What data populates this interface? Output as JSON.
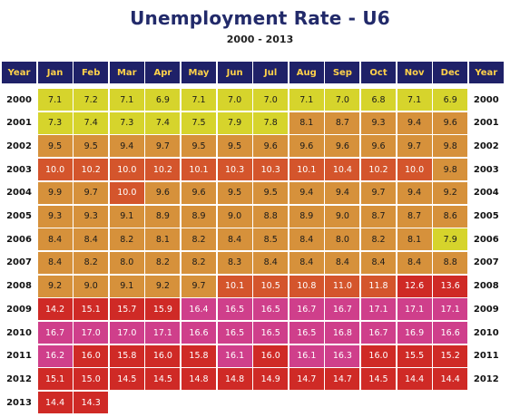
{
  "chart_data": {
    "type": "heatmap",
    "title": "Unemployment Rate - U6",
    "subtitle": "2000 - 2013",
    "row_header_label": "Year",
    "columns": [
      "Jan",
      "Feb",
      "Mar",
      "Apr",
      "May",
      "Jun",
      "Jul",
      "Aug",
      "Sep",
      "Oct",
      "Nov",
      "Dec"
    ],
    "rows": [
      {
        "year": "2000",
        "values": [
          "7.1",
          "7.2",
          "7.1",
          "6.9",
          "7.1",
          "7.0",
          "7.0",
          "7.1",
          "7.0",
          "6.8",
          "7.1",
          "6.9"
        ]
      },
      {
        "year": "2001",
        "values": [
          "7.3",
          "7.4",
          "7.3",
          "7.4",
          "7.5",
          "7.9",
          "7.8",
          "8.1",
          "8.7",
          "9.3",
          "9.4",
          "9.6"
        ]
      },
      {
        "year": "2002",
        "values": [
          "9.5",
          "9.5",
          "9.4",
          "9.7",
          "9.5",
          "9.5",
          "9.6",
          "9.6",
          "9.6",
          "9.6",
          "9.7",
          "9.8"
        ]
      },
      {
        "year": "2003",
        "values": [
          "10.0",
          "10.2",
          "10.0",
          "10.2",
          "10.1",
          "10.3",
          "10.3",
          "10.1",
          "10.4",
          "10.2",
          "10.0",
          "9.8"
        ]
      },
      {
        "year": "2004",
        "values": [
          "9.9",
          "9.7",
          "10.0",
          "9.6",
          "9.6",
          "9.5",
          "9.5",
          "9.4",
          "9.4",
          "9.7",
          "9.4",
          "9.2"
        ]
      },
      {
        "year": "2005",
        "values": [
          "9.3",
          "9.3",
          "9.1",
          "8.9",
          "8.9",
          "9.0",
          "8.8",
          "8.9",
          "9.0",
          "8.7",
          "8.7",
          "8.6"
        ]
      },
      {
        "year": "2006",
        "values": [
          "8.4",
          "8.4",
          "8.2",
          "8.1",
          "8.2",
          "8.4",
          "8.5",
          "8.4",
          "8.0",
          "8.2",
          "8.1",
          "7.9"
        ]
      },
      {
        "year": "2007",
        "values": [
          "8.4",
          "8.2",
          "8.0",
          "8.2",
          "8.2",
          "8.3",
          "8.4",
          "8.4",
          "8.4",
          "8.4",
          "8.4",
          "8.8"
        ]
      },
      {
        "year": "2008",
        "values": [
          "9.2",
          "9.0",
          "9.1",
          "9.2",
          "9.7",
          "10.1",
          "10.5",
          "10.8",
          "11.0",
          "11.8",
          "12.6",
          "13.6"
        ]
      },
      {
        "year": "2009",
        "values": [
          "14.2",
          "15.1",
          "15.7",
          "15.9",
          "16.4",
          "16.5",
          "16.5",
          "16.7",
          "16.7",
          "17.1",
          "17.1",
          "17.1"
        ]
      },
      {
        "year": "2010",
        "values": [
          "16.7",
          "17.0",
          "17.0",
          "17.1",
          "16.6",
          "16.5",
          "16.5",
          "16.5",
          "16.8",
          "16.7",
          "16.9",
          "16.6"
        ]
      },
      {
        "year": "2011",
        "values": [
          "16.2",
          "16.0",
          "15.8",
          "16.0",
          "15.8",
          "16.1",
          "16.0",
          "16.1",
          "16.3",
          "16.0",
          "15.5",
          "15.2"
        ]
      },
      {
        "year": "2012",
        "values": [
          "15.1",
          "15.0",
          "14.5",
          "14.5",
          "14.8",
          "14.8",
          "14.9",
          "14.7",
          "14.7",
          "14.5",
          "14.4",
          "14.4"
        ]
      },
      {
        "year": "2013",
        "values": [
          "14.4",
          "14.3"
        ]
      }
    ],
    "colors": {
      "header_bg": "#1f2168",
      "header_text": "#ffd24a",
      "under_8": "#d6d42c",
      "8_to_10": "#d6913b",
      "10_to_12": "#d4552c",
      "12_to_16": "#cf2a26",
      "over_16": "#cf3f8b"
    }
  }
}
